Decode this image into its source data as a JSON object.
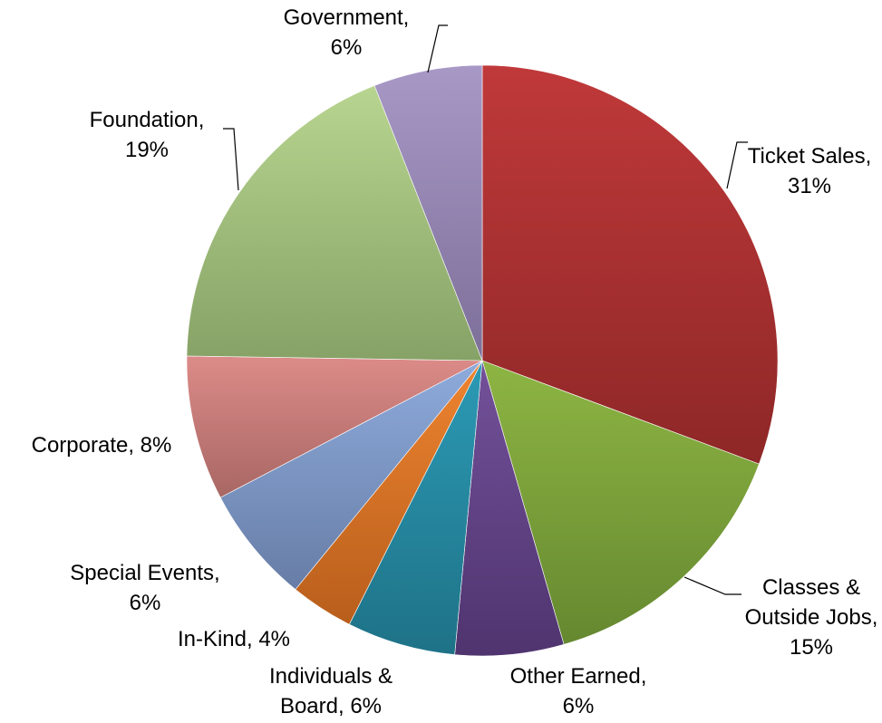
{
  "chart_data": {
    "type": "pie",
    "title": "",
    "start_angle_deg": 0,
    "direction": "clockwise",
    "slices": [
      {
        "label": "Ticket Sales",
        "percent_label": "31%",
        "value": 31,
        "color_light": "#c0393a",
        "color_dark": "#8e2727",
        "lines": [
          "Ticket Sales,",
          "31%"
        ]
      },
      {
        "label": "Classes & Outside Jobs",
        "percent_label": "15%",
        "value": 15,
        "color_light": "#8db543",
        "color_dark": "#658830",
        "lines": [
          "Classes &",
          "Outside Jobs,",
          "15%"
        ]
      },
      {
        "label": "Other Earned",
        "percent_label": "6%",
        "value": 6,
        "color_light": "#73519a",
        "color_dark": "#4f346f",
        "lines": [
          "Other Earned,",
          "6%"
        ]
      },
      {
        "label": "Individuals & Board",
        "percent_label": "6%",
        "value": 6,
        "color_light": "#2c9ab5",
        "color_dark": "#1e7287",
        "lines": [
          "Individuals &",
          "Board, 6%"
        ]
      },
      {
        "label": "In-Kind",
        "percent_label": "4%",
        "value": 3.5,
        "color_light": "#ee8430",
        "color_dark": "#b85e1c",
        "lines": [
          "In-Kind, 4%"
        ]
      },
      {
        "label": "Special Events",
        "percent_label": "6%",
        "value": 6.5,
        "color_light": "#8eabdc",
        "color_dark": "#677da6",
        "lines": [
          "Special Events,",
          "6%"
        ]
      },
      {
        "label": "Corporate",
        "percent_label": "8%",
        "value": 8,
        "color_light": "#dc8b88",
        "color_dark": "#a86764",
        "lines": [
          "Corporate, 8%"
        ]
      },
      {
        "label": "Foundation",
        "percent_label": "19%",
        "value": 19,
        "color_light": "#b8d590",
        "color_dark": "#86a266",
        "lines": [
          "Foundation,",
          "19%"
        ]
      },
      {
        "label": "Government",
        "percent_label": "6%",
        "value": 6,
        "color_light": "#a898c6",
        "color_dark": "#7c6f98",
        "lines": [
          "Government,",
          "6%"
        ]
      }
    ]
  }
}
